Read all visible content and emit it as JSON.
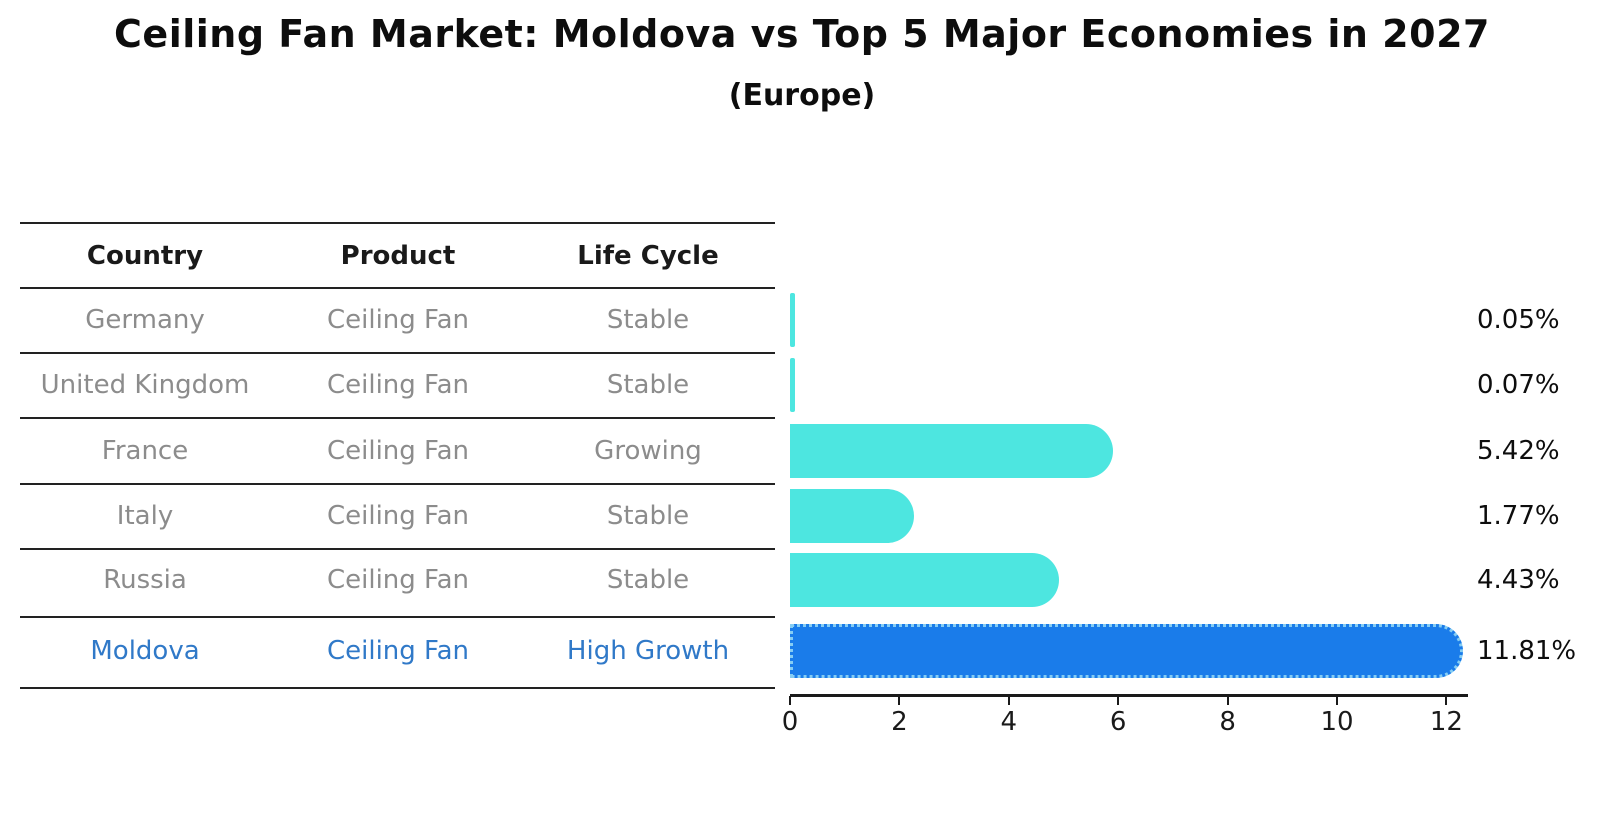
{
  "title": "Ceiling Fan Market: Moldova vs Top 5 Major Economies in 2027",
  "subtitle": "(Europe)",
  "table": {
    "headers": [
      "Country",
      "Product",
      "Life Cycle"
    ],
    "rows": [
      {
        "country": "Germany",
        "product": "Ceiling Fan",
        "life_cycle": "Stable",
        "highlight": false
      },
      {
        "country": "United Kingdom",
        "product": "Ceiling Fan",
        "life_cycle": "Stable",
        "highlight": false
      },
      {
        "country": "France",
        "product": "Ceiling Fan",
        "life_cycle": "Growing",
        "highlight": false
      },
      {
        "country": "Italy",
        "product": "Ceiling Fan",
        "life_cycle": "Stable",
        "highlight": false
      },
      {
        "country": "Russia",
        "product": "Ceiling Fan",
        "life_cycle": "Stable",
        "highlight": false
      },
      {
        "country": "Moldova",
        "product": "Ceiling Fan",
        "life_cycle": "High Growth",
        "highlight": true
      }
    ]
  },
  "chart_data": {
    "type": "bar",
    "orientation": "horizontal",
    "title": "Ceiling Fan Market: Moldova vs Top 5 Major Economies in 2027",
    "subtitle": "(Europe)",
    "categories": [
      "Germany",
      "United Kingdom",
      "France",
      "Italy",
      "Russia",
      "Moldova"
    ],
    "values": [
      0.05,
      0.07,
      5.42,
      1.77,
      4.43,
      11.81
    ],
    "value_labels": [
      "0.05%",
      "0.07%",
      "5.42%",
      "1.77%",
      "4.43%",
      "11.81%"
    ],
    "unit": "%",
    "xlabel": "",
    "ylabel": "",
    "xlim": [
      0,
      12.4
    ],
    "x_ticks": [
      0,
      2,
      4,
      6,
      8,
      10,
      12
    ],
    "grid": false,
    "legend": false,
    "bar_color": "#4de6e0",
    "highlight_color": "#1a7cea",
    "highlight_border_color": "#86cdf3",
    "highlight_index": 5,
    "highlight_text_color": "#3079c8"
  }
}
